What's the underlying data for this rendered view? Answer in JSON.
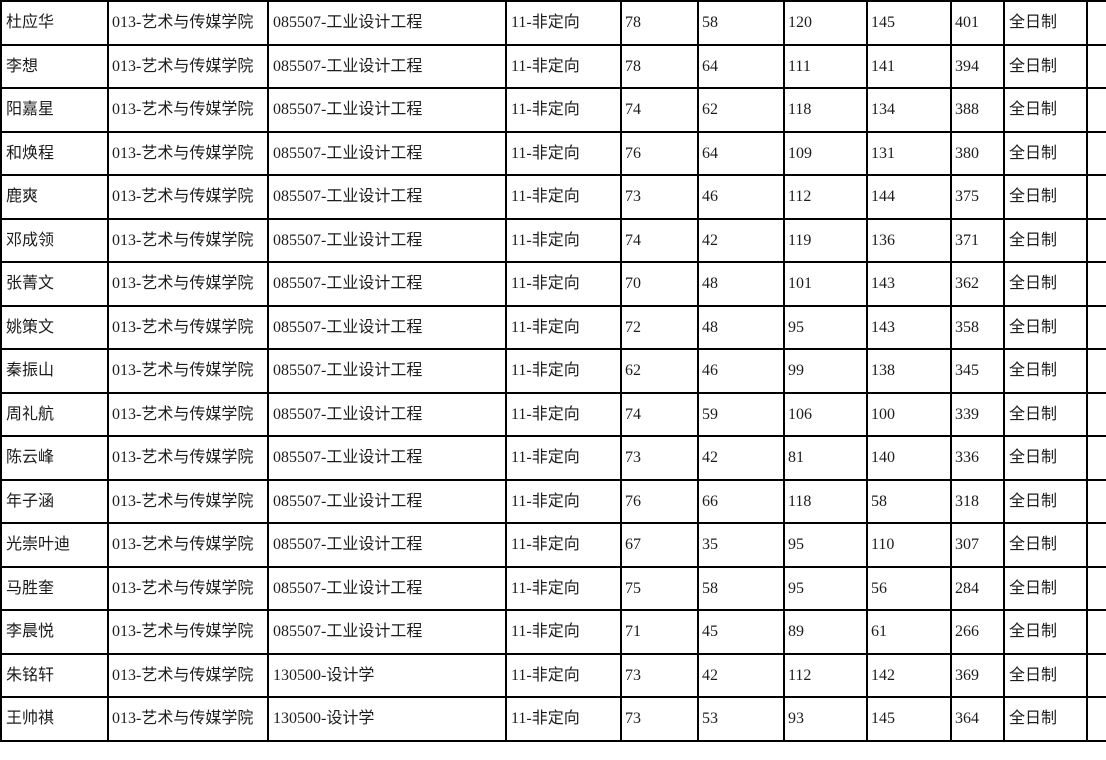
{
  "table": {
    "rows": [
      {
        "name": "杜应华",
        "college": "013-艺术与传媒学院",
        "program": "085507-工业设计工程",
        "category": "11-非定向",
        "scores": [
          78,
          58,
          120,
          145
        ],
        "total": 401,
        "mode": "全日制"
      },
      {
        "name": "李想",
        "college": "013-艺术与传媒学院",
        "program": "085507-工业设计工程",
        "category": "11-非定向",
        "scores": [
          78,
          64,
          111,
          141
        ],
        "total": 394,
        "mode": "全日制"
      },
      {
        "name": "阳嘉星",
        "college": "013-艺术与传媒学院",
        "program": "085507-工业设计工程",
        "category": "11-非定向",
        "scores": [
          74,
          62,
          118,
          134
        ],
        "total": 388,
        "mode": "全日制"
      },
      {
        "name": "和焕程",
        "college": "013-艺术与传媒学院",
        "program": "085507-工业设计工程",
        "category": "11-非定向",
        "scores": [
          76,
          64,
          109,
          131
        ],
        "total": 380,
        "mode": "全日制"
      },
      {
        "name": "鹿爽",
        "college": "013-艺术与传媒学院",
        "program": "085507-工业设计工程",
        "category": "11-非定向",
        "scores": [
          73,
          46,
          112,
          144
        ],
        "total": 375,
        "mode": "全日制"
      },
      {
        "name": "邓成领",
        "college": "013-艺术与传媒学院",
        "program": "085507-工业设计工程",
        "category": "11-非定向",
        "scores": [
          74,
          42,
          119,
          136
        ],
        "total": 371,
        "mode": "全日制"
      },
      {
        "name": "张菁文",
        "college": "013-艺术与传媒学院",
        "program": "085507-工业设计工程",
        "category": "11-非定向",
        "scores": [
          70,
          48,
          101,
          143
        ],
        "total": 362,
        "mode": "全日制"
      },
      {
        "name": "姚策文",
        "college": "013-艺术与传媒学院",
        "program": "085507-工业设计工程",
        "category": "11-非定向",
        "scores": [
          72,
          48,
          95,
          143
        ],
        "total": 358,
        "mode": "全日制"
      },
      {
        "name": "秦振山",
        "college": "013-艺术与传媒学院",
        "program": "085507-工业设计工程",
        "category": "11-非定向",
        "scores": [
          62,
          46,
          99,
          138
        ],
        "total": 345,
        "mode": "全日制"
      },
      {
        "name": "周礼航",
        "college": "013-艺术与传媒学院",
        "program": "085507-工业设计工程",
        "category": "11-非定向",
        "scores": [
          74,
          59,
          106,
          100
        ],
        "total": 339,
        "mode": "全日制"
      },
      {
        "name": "陈云峰",
        "college": "013-艺术与传媒学院",
        "program": "085507-工业设计工程",
        "category": "11-非定向",
        "scores": [
          73,
          42,
          81,
          140
        ],
        "total": 336,
        "mode": "全日制"
      },
      {
        "name": "年子涵",
        "college": "013-艺术与传媒学院",
        "program": "085507-工业设计工程",
        "category": "11-非定向",
        "scores": [
          76,
          66,
          118,
          58
        ],
        "total": 318,
        "mode": "全日制"
      },
      {
        "name": "光崇叶迪",
        "college": "013-艺术与传媒学院",
        "program": "085507-工业设计工程",
        "category": "11-非定向",
        "scores": [
          67,
          35,
          95,
          110
        ],
        "total": 307,
        "mode": "全日制"
      },
      {
        "name": "马胜奎",
        "college": "013-艺术与传媒学院",
        "program": "085507-工业设计工程",
        "category": "11-非定向",
        "scores": [
          75,
          58,
          95,
          56
        ],
        "total": 284,
        "mode": "全日制"
      },
      {
        "name": "李晨悦",
        "college": "013-艺术与传媒学院",
        "program": "085507-工业设计工程",
        "category": "11-非定向",
        "scores": [
          71,
          45,
          89,
          61
        ],
        "total": 266,
        "mode": "全日制"
      },
      {
        "name": "朱铭轩",
        "college": "013-艺术与传媒学院",
        "program": "130500-设计学",
        "category": "11-非定向",
        "scores": [
          73,
          42,
          112,
          142
        ],
        "total": 369,
        "mode": "全日制"
      },
      {
        "name": "王帅祺",
        "college": "013-艺术与传媒学院",
        "program": "130500-设计学",
        "category": "11-非定向",
        "scores": [
          73,
          53,
          93,
          145
        ],
        "total": 364,
        "mode": "全日制"
      }
    ]
  }
}
